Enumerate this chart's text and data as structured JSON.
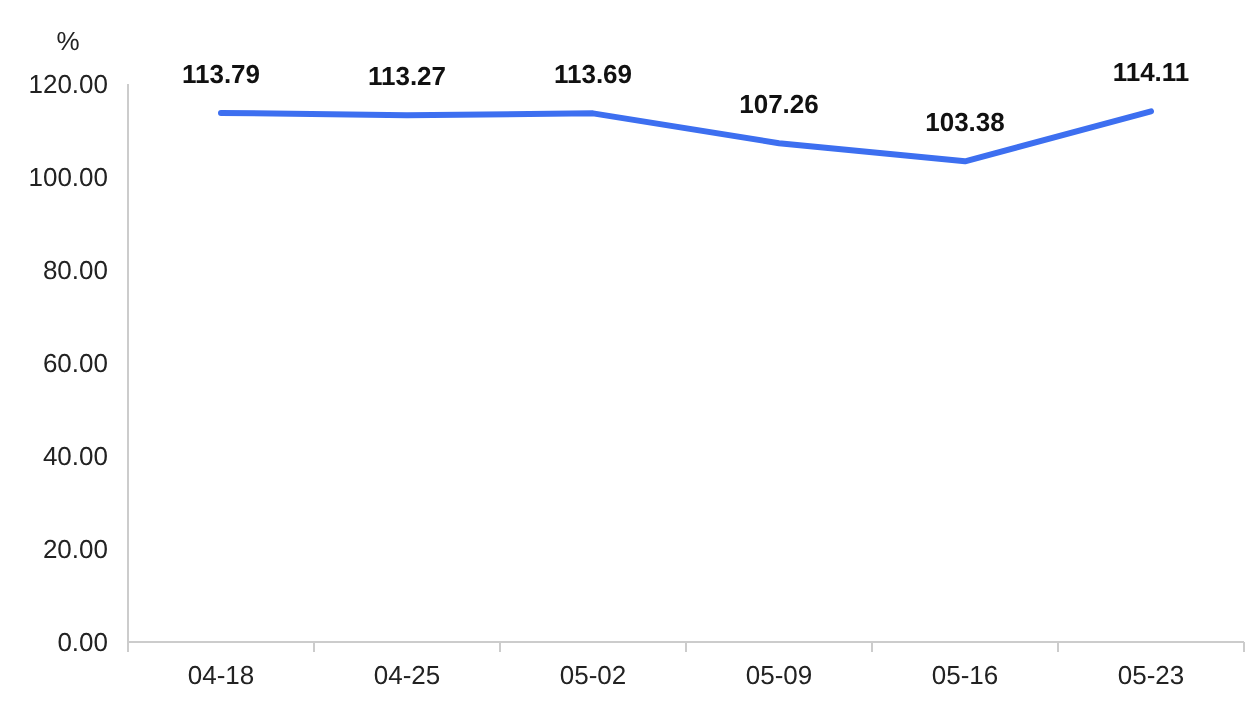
{
  "chart_data": {
    "type": "line",
    "ylabel": "%",
    "categories": [
      "04-18",
      "04-25",
      "05-02",
      "05-09",
      "05-16",
      "05-23"
    ],
    "series": [
      {
        "color": "#3d6ff0",
        "values": [
          113.79,
          113.27,
          113.69,
          107.26,
          103.38,
          114.11
        ]
      }
    ],
    "ylim": [
      0,
      120
    ],
    "yticks": [
      {
        "value": 0,
        "label": "0.00"
      },
      {
        "value": 20,
        "label": "20.00"
      },
      {
        "value": 40,
        "label": "40.00"
      },
      {
        "value": 60,
        "label": "60.00"
      },
      {
        "value": 80,
        "label": "80.00"
      },
      {
        "value": 100,
        "label": "100.00"
      },
      {
        "value": 120,
        "label": "120.00"
      }
    ],
    "data_labels": true,
    "grid": false,
    "marker": "none",
    "line_style": "solid"
  }
}
